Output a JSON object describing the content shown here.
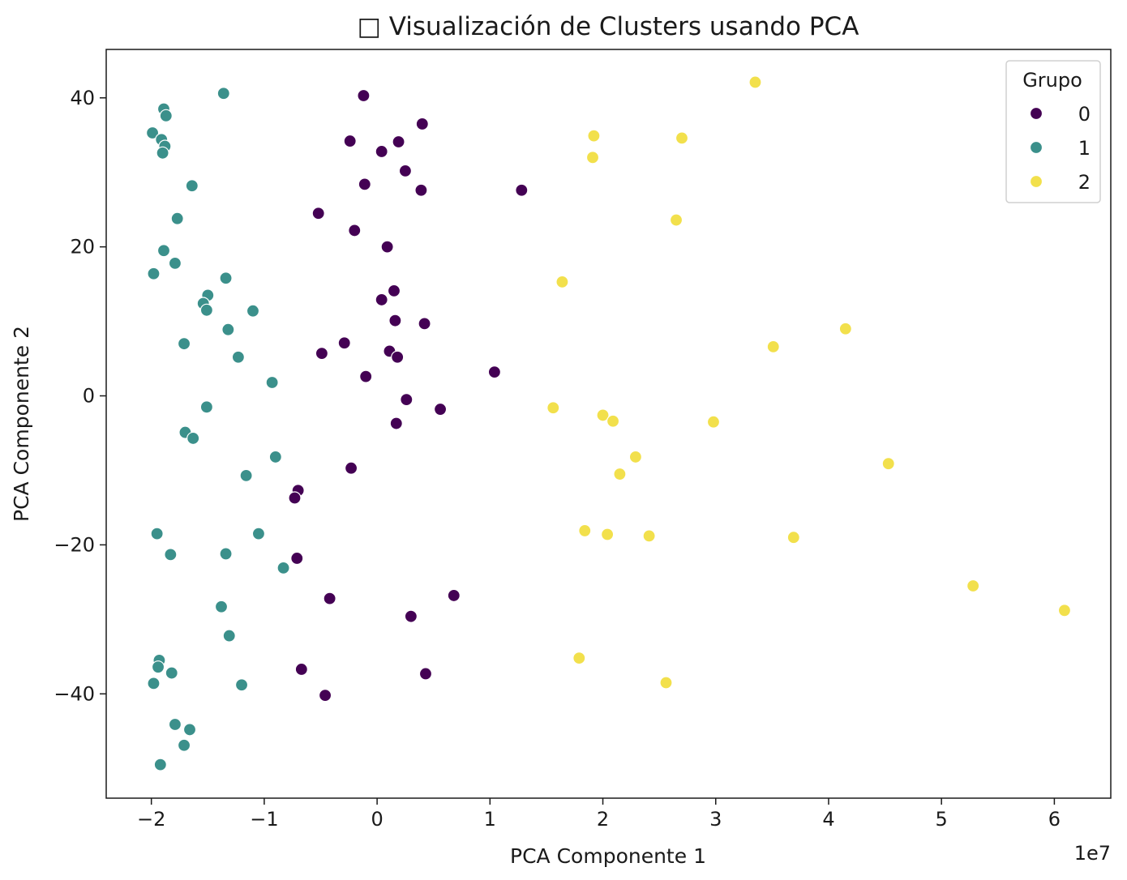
{
  "chart_data": {
    "type": "scatter",
    "title": "□ Visualización de Clusters usando PCA",
    "xlabel": "PCA Componente 1",
    "ylabel": "PCA Componente 2",
    "x_offset_text": "1e7",
    "xlim": [
      -2.4,
      6.5
    ],
    "ylim": [
      -54,
      46.5
    ],
    "x_ticks": [
      -2,
      -1,
      0,
      1,
      2,
      3,
      4,
      5,
      6
    ],
    "x_tick_labels": [
      "−2",
      "−1",
      "0",
      "1",
      "2",
      "3",
      "4",
      "5",
      "6"
    ],
    "y_ticks": [
      -40,
      -20,
      0,
      20,
      40
    ],
    "y_tick_labels": [
      "−40",
      "−20",
      "0",
      "20",
      "40"
    ],
    "grid": false,
    "legend": {
      "title": "Grupo",
      "position": "top-right"
    },
    "series": [
      {
        "name": "0",
        "color": "#440154",
        "points": [
          [
            -0.12,
            40.3
          ],
          [
            0.4,
            36.5
          ],
          [
            -0.24,
            34.2
          ],
          [
            0.04,
            32.8
          ],
          [
            0.19,
            34.1
          ],
          [
            0.25,
            30.2
          ],
          [
            -0.11,
            28.4
          ],
          [
            0.39,
            27.6
          ],
          [
            1.28,
            27.6
          ],
          [
            -0.52,
            24.5
          ],
          [
            -0.2,
            22.2
          ],
          [
            0.09,
            20.0
          ],
          [
            0.15,
            14.1
          ],
          [
            0.04,
            12.9
          ],
          [
            0.16,
            10.1
          ],
          [
            0.42,
            9.7
          ],
          [
            -0.49,
            5.7
          ],
          [
            -0.29,
            7.1
          ],
          [
            0.11,
            6.0
          ],
          [
            0.18,
            5.2
          ],
          [
            -0.1,
            2.6
          ],
          [
            1.04,
            3.2
          ],
          [
            0.26,
            -0.5
          ],
          [
            0.56,
            -1.8
          ],
          [
            0.17,
            -3.7
          ],
          [
            -0.23,
            -9.7
          ],
          [
            -0.7,
            -12.7
          ],
          [
            -0.73,
            -13.7
          ],
          [
            -0.71,
            -21.8
          ],
          [
            0.68,
            -26.8
          ],
          [
            -0.42,
            -27.2
          ],
          [
            0.3,
            -29.6
          ],
          [
            -0.67,
            -36.7
          ],
          [
            0.43,
            -37.3
          ],
          [
            -0.46,
            -40.2
          ]
        ]
      },
      {
        "name": "1",
        "color": "#3b908b",
        "points": [
          [
            -1.36,
            40.6
          ],
          [
            -1.89,
            38.5
          ],
          [
            -1.87,
            37.6
          ],
          [
            -1.99,
            35.3
          ],
          [
            -1.91,
            34.4
          ],
          [
            -1.88,
            33.5
          ],
          [
            -1.9,
            32.6
          ],
          [
            -1.64,
            28.2
          ],
          [
            -1.77,
            23.8
          ],
          [
            -1.89,
            19.5
          ],
          [
            -1.79,
            17.8
          ],
          [
            -1.98,
            16.4
          ],
          [
            -1.34,
            15.8
          ],
          [
            -1.5,
            13.5
          ],
          [
            -1.54,
            12.4
          ],
          [
            -1.51,
            11.5
          ],
          [
            -1.1,
            11.4
          ],
          [
            -1.32,
            8.9
          ],
          [
            -1.71,
            7.0
          ],
          [
            -1.23,
            5.2
          ],
          [
            -0.93,
            1.8
          ],
          [
            -1.51,
            -1.5
          ],
          [
            -1.7,
            -4.9
          ],
          [
            -1.63,
            -5.7
          ],
          [
            -0.9,
            -8.2
          ],
          [
            -1.16,
            -10.7
          ],
          [
            -1.95,
            -18.5
          ],
          [
            -1.05,
            -18.5
          ],
          [
            -1.83,
            -21.3
          ],
          [
            -1.34,
            -21.2
          ],
          [
            -0.83,
            -23.1
          ],
          [
            -1.38,
            -28.3
          ],
          [
            -1.31,
            -32.2
          ],
          [
            -1.93,
            -35.5
          ],
          [
            -1.94,
            -36.4
          ],
          [
            -1.82,
            -37.2
          ],
          [
            -1.98,
            -38.6
          ],
          [
            -1.2,
            -38.8
          ],
          [
            -1.79,
            -44.1
          ],
          [
            -1.66,
            -44.8
          ],
          [
            -1.71,
            -46.9
          ],
          [
            -1.92,
            -49.5
          ]
        ]
      },
      {
        "name": "2",
        "color": "#f2e04c",
        "points": [
          [
            3.35,
            42.1
          ],
          [
            1.92,
            34.9
          ],
          [
            2.7,
            34.6
          ],
          [
            1.91,
            32.0
          ],
          [
            2.65,
            23.6
          ],
          [
            1.64,
            15.3
          ],
          [
            4.15,
            9.0
          ],
          [
            3.51,
            6.6
          ],
          [
            1.56,
            -1.6
          ],
          [
            2.0,
            -2.6
          ],
          [
            2.09,
            -3.4
          ],
          [
            2.98,
            -3.5
          ],
          [
            4.53,
            -9.1
          ],
          [
            2.29,
            -8.2
          ],
          [
            2.15,
            -10.5
          ],
          [
            1.84,
            -18.1
          ],
          [
            2.04,
            -18.6
          ],
          [
            2.41,
            -18.8
          ],
          [
            3.69,
            -19.0
          ],
          [
            5.28,
            -25.5
          ],
          [
            6.09,
            -28.8
          ],
          [
            1.79,
            -35.2
          ],
          [
            2.56,
            -38.5
          ]
        ]
      }
    ]
  }
}
